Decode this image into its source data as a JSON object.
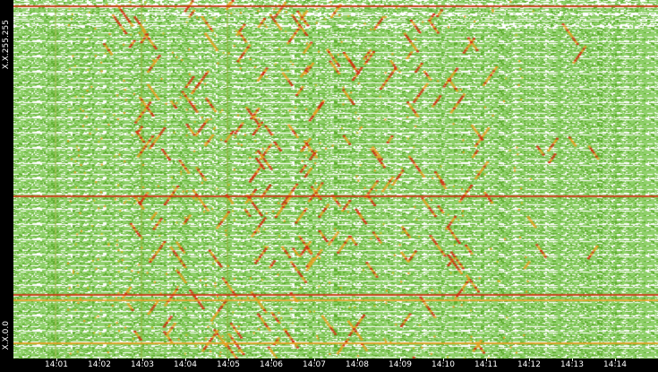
{
  "chart_data": {
    "type": "heatmap",
    "title": "",
    "y_axis": {
      "top_label": "X.X.255.255",
      "bottom_label": "X.X.0.0"
    },
    "x_axis": {
      "ticks": [
        "14:01",
        "14:02",
        "14:03",
        "14:04",
        "14:05",
        "14:06",
        "14:07",
        "14:08",
        "14:09",
        "14:10",
        "14:11",
        "14:12",
        "14:13",
        "14:14"
      ],
      "range": [
        "14:00",
        "14:15"
      ]
    },
    "grid": false,
    "colors": {
      "background": "#ffffff",
      "low": "#8fd06a",
      "mid": "#5fae2f",
      "high": "#e8a020",
      "peak": "#d03010",
      "axis_bg": "#000000",
      "axis_text": "#ffffff"
    },
    "strong_horizontal_bands": [
      {
        "row_fraction": 0.015,
        "intensity": "peak"
      },
      {
        "row_fraction": 0.545,
        "intensity": "peak"
      },
      {
        "row_fraction": 0.82,
        "intensity": "peak"
      },
      {
        "row_fraction": 0.835,
        "intensity": "high"
      },
      {
        "row_fraction": 0.955,
        "intensity": "high"
      }
    ],
    "vertical_bands_at": [
      "14:01",
      "14:03",
      "14:05"
    ]
  }
}
